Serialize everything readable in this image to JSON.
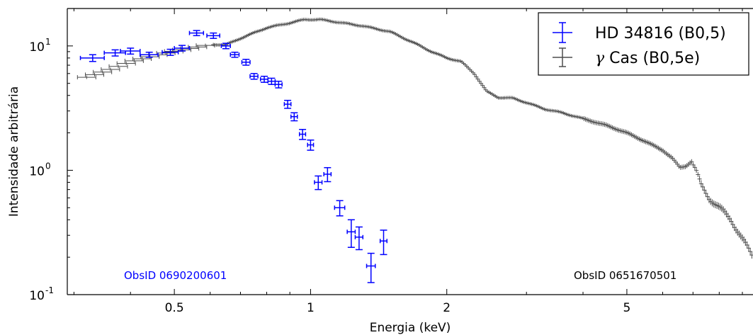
{
  "chart_data": {
    "type": "scatter",
    "xlabel": "Energia (keV)",
    "ylabel": "Intensidade arbitrária",
    "xscale": "log",
    "yscale": "log",
    "xlim": [
      0.29,
      9.5
    ],
    "ylim": [
      0.1,
      20
    ],
    "grid": false,
    "legend_position": "top-right",
    "x_ticks": [
      {
        "value": 0.5,
        "label": "0.5"
      },
      {
        "value": 1,
        "label": "1"
      },
      {
        "value": 2,
        "label": "2"
      },
      {
        "value": 5,
        "label": "5"
      }
    ],
    "y_ticks": [
      {
        "value": 0.1,
        "base": "10",
        "exp": "-1"
      },
      {
        "value": 1,
        "base": "10",
        "exp": "0"
      },
      {
        "value": 10,
        "base": "10",
        "exp": "1"
      }
    ],
    "annotations": [
      {
        "text": "ObsID 0690200601",
        "color": "#0000ff",
        "position": "bottom-left"
      },
      {
        "text": "ObsID 0651670501",
        "color": "#000000",
        "position": "bottom-right"
      }
    ],
    "series": [
      {
        "name": "HD 34816 (B0,5)",
        "color": "#0000ff",
        "points": [
          {
            "x": 0.33,
            "y": 8.0,
            "xerr": 0.02,
            "yerr": 0.5
          },
          {
            "x": 0.37,
            "y": 8.8,
            "xerr": 0.02,
            "yerr": 0.5
          },
          {
            "x": 0.4,
            "y": 9.1,
            "xerr": 0.02,
            "yerr": 0.5
          },
          {
            "x": 0.44,
            "y": 8.5,
            "xerr": 0.02,
            "yerr": 0.4
          },
          {
            "x": 0.49,
            "y": 8.9,
            "xerr": 0.02,
            "yerr": 0.5
          },
          {
            "x": 0.52,
            "y": 9.6,
            "xerr": 0.02,
            "yerr": 0.5
          },
          {
            "x": 0.56,
            "y": 12.7,
            "xerr": 0.02,
            "yerr": 0.6
          },
          {
            "x": 0.61,
            "y": 12.1,
            "xerr": 0.02,
            "yerr": 0.6
          },
          {
            "x": 0.65,
            "y": 10.0,
            "xerr": 0.015,
            "yerr": 0.5
          },
          {
            "x": 0.68,
            "y": 8.5,
            "xerr": 0.015,
            "yerr": 0.4
          },
          {
            "x": 0.72,
            "y": 7.4,
            "xerr": 0.015,
            "yerr": 0.4
          },
          {
            "x": 0.75,
            "y": 5.7,
            "xerr": 0.015,
            "yerr": 0.3
          },
          {
            "x": 0.79,
            "y": 5.4,
            "xerr": 0.015,
            "yerr": 0.3
          },
          {
            "x": 0.82,
            "y": 5.2,
            "xerr": 0.015,
            "yerr": 0.3
          },
          {
            "x": 0.85,
            "y": 4.9,
            "xerr": 0.015,
            "yerr": 0.3
          },
          {
            "x": 0.89,
            "y": 3.4,
            "xerr": 0.015,
            "yerr": 0.25
          },
          {
            "x": 0.92,
            "y": 2.7,
            "xerr": 0.015,
            "yerr": 0.2
          },
          {
            "x": 0.96,
            "y": 1.95,
            "xerr": 0.015,
            "yerr": 0.18
          },
          {
            "x": 1.0,
            "y": 1.6,
            "xerr": 0.015,
            "yerr": 0.15
          },
          {
            "x": 1.04,
            "y": 0.8,
            "xerr": 0.02,
            "yerr": 0.1
          },
          {
            "x": 1.09,
            "y": 0.93,
            "xerr": 0.02,
            "yerr": 0.12
          },
          {
            "x": 1.16,
            "y": 0.5,
            "xerr": 0.03,
            "yerr": 0.07
          },
          {
            "x": 1.23,
            "y": 0.32,
            "xerr": 0.025,
            "yerr": 0.08
          },
          {
            "x": 1.28,
            "y": 0.29,
            "xerr": 0.025,
            "yerr": 0.06
          },
          {
            "x": 1.36,
            "y": 0.17,
            "xerr": 0.03,
            "yerr": 0.045
          },
          {
            "x": 1.45,
            "y": 0.27,
            "xerr": 0.025,
            "yerr": 0.06
          }
        ]
      },
      {
        "name": "γ Cas (B0,5e)",
        "name_prefix": "γ",
        "name_rest": " Cas (B0,5e)",
        "color": "#4d4d4d",
        "curve": [
          [
            0.32,
            5.6
          ],
          [
            0.36,
            6.5
          ],
          [
            0.4,
            7.5
          ],
          [
            0.45,
            8.3
          ],
          [
            0.5,
            9.0
          ],
          [
            0.55,
            9.6
          ],
          [
            0.6,
            10.3
          ],
          [
            0.65,
            10.2
          ],
          [
            0.7,
            11.5
          ],
          [
            0.8,
            14.0
          ],
          [
            0.9,
            15.3
          ],
          [
            0.97,
            16.3
          ],
          [
            1.05,
            16.3
          ],
          [
            1.15,
            15.5
          ],
          [
            1.3,
            14.5
          ],
          [
            1.5,
            13.0
          ],
          [
            1.7,
            10.5
          ],
          [
            1.85,
            9.0
          ],
          [
            2.0,
            8.0
          ],
          [
            2.15,
            7.5
          ],
          [
            2.3,
            6.0
          ],
          [
            2.45,
            4.3
          ],
          [
            2.6,
            3.85
          ],
          [
            2.8,
            3.8
          ],
          [
            3.0,
            3.5
          ],
          [
            3.3,
            3.1
          ],
          [
            3.6,
            2.9
          ],
          [
            4.0,
            2.6
          ],
          [
            4.5,
            2.3
          ],
          [
            5.0,
            2.0
          ],
          [
            5.5,
            1.7
          ],
          [
            6.0,
            1.45
          ],
          [
            6.3,
            1.25
          ],
          [
            6.55,
            1.05
          ],
          [
            6.75,
            1.08
          ],
          [
            6.95,
            1.18
          ],
          [
            7.1,
            1.0
          ],
          [
            7.3,
            0.75
          ],
          [
            7.6,
            0.6
          ],
          [
            8.0,
            0.5
          ],
          [
            8.5,
            0.4
          ],
          [
            9.0,
            0.28
          ],
          [
            9.5,
            0.2
          ]
        ]
      }
    ]
  }
}
